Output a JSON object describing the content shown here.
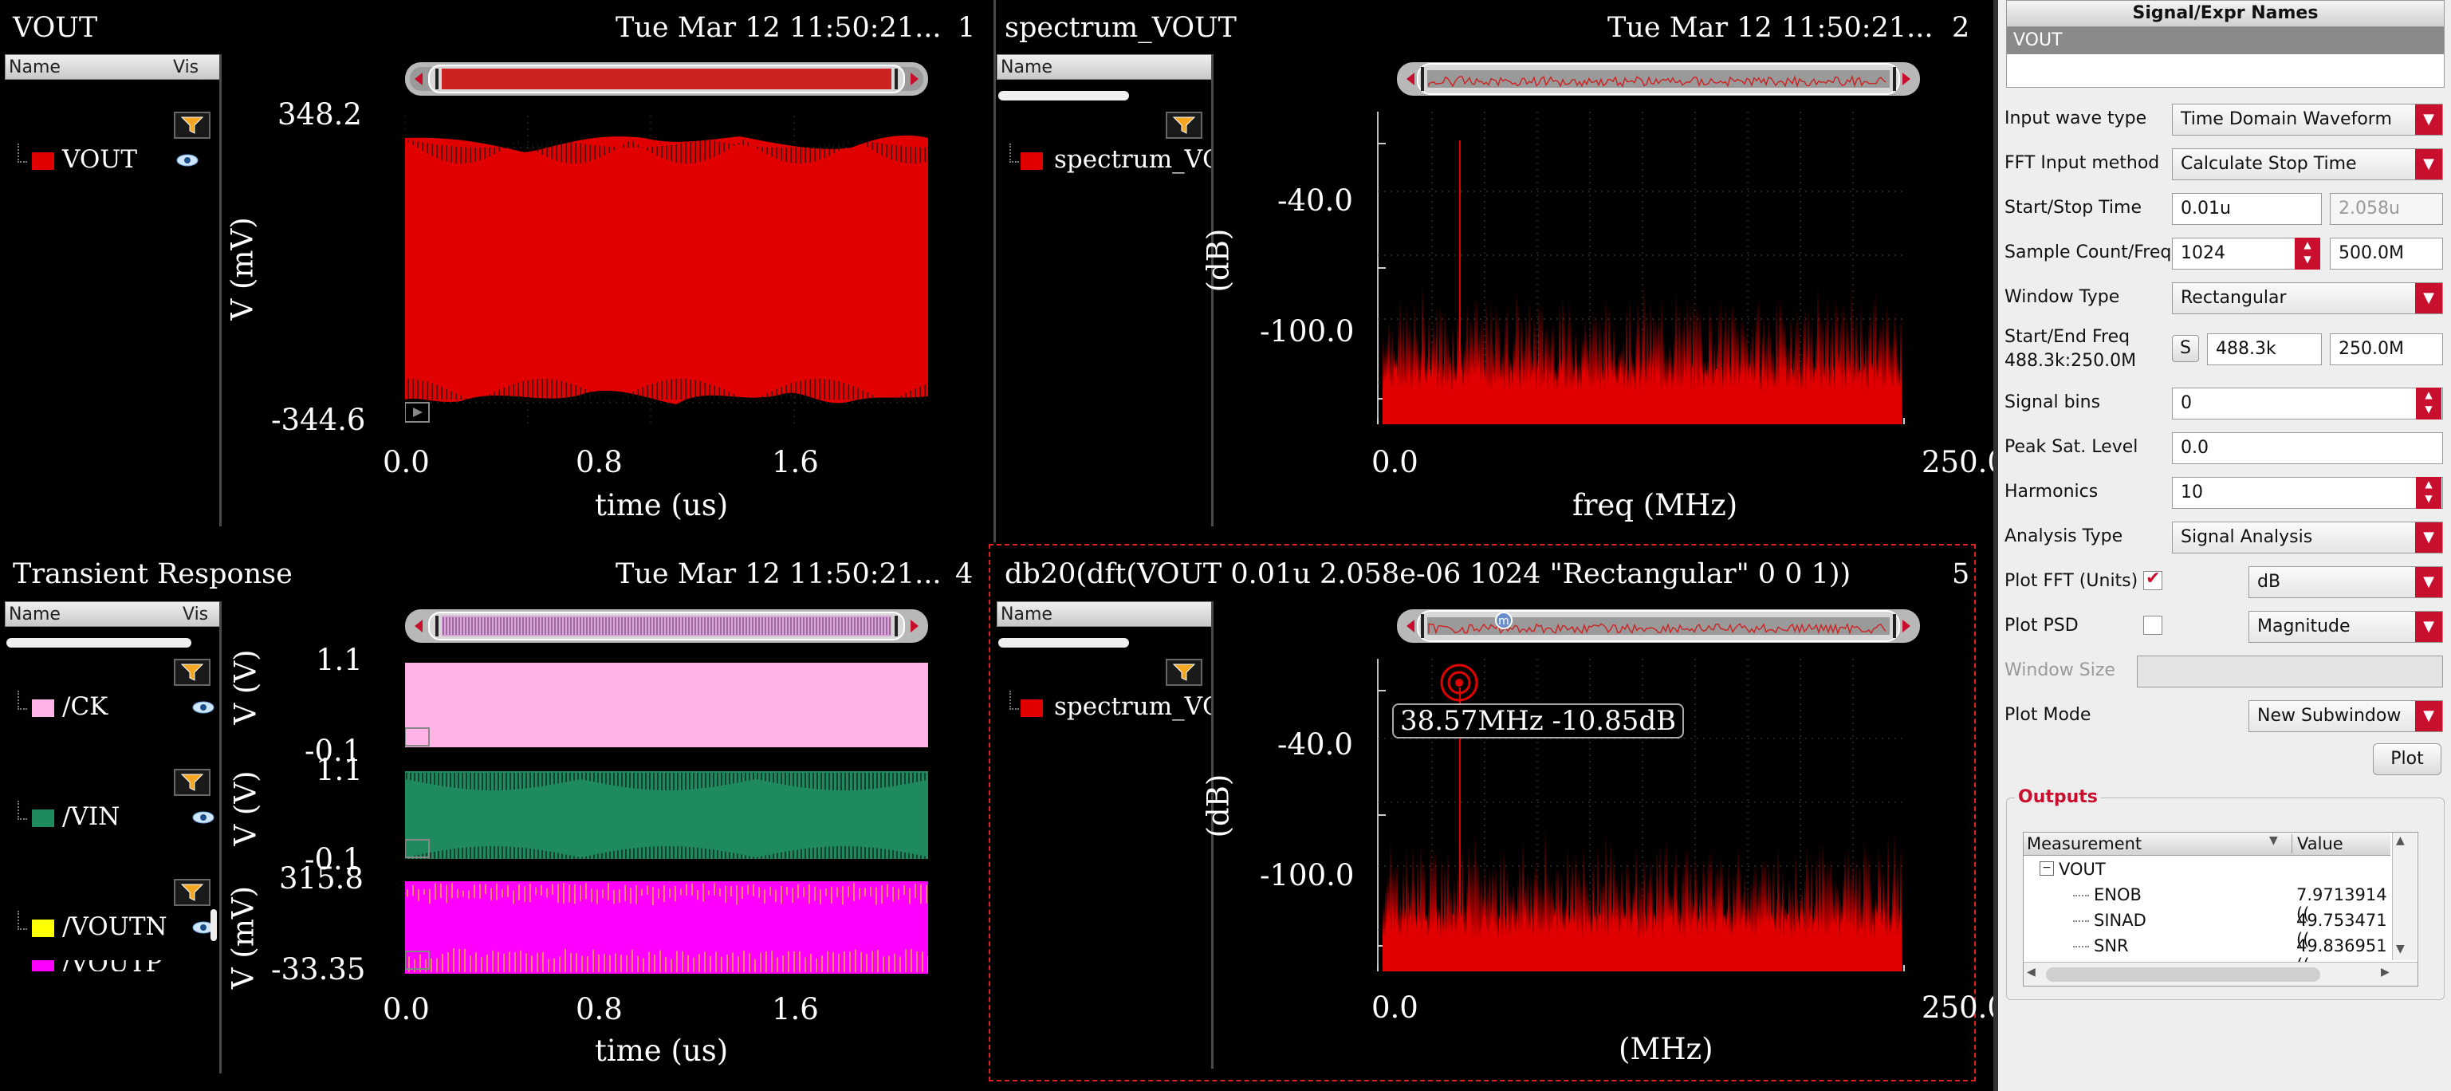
{
  "subwindows": {
    "sw1": {
      "title": "VOUT",
      "timestamp": "Tue Mar 12 11:50:21...",
      "number": "1",
      "legend": {
        "col_name": "Name",
        "col_vis": "Vis",
        "items": [
          {
            "name": "VOUT",
            "color": "#e00000"
          }
        ]
      },
      "ylabel": "V (mV)",
      "yticks": [
        "348.2",
        "-344.6"
      ],
      "xlabel": "time (us)",
      "xticks": [
        "0.0",
        "0.8",
        "1.6"
      ]
    },
    "sw2": {
      "title": "spectrum_VOUT",
      "timestamp": "Tue Mar 12 11:50:21...",
      "number": "2",
      "legend": {
        "col_name": "Name",
        "items": [
          {
            "name": "spectrum_VC",
            "color": "#e00000"
          }
        ]
      },
      "ylabel": "(dB)",
      "yticks": [
        "-40.0",
        "-100.0"
      ],
      "xlabel": "freq (MHz)",
      "xticks": [
        "0.0",
        "250.0"
      ]
    },
    "sw4": {
      "title": "Transient Response",
      "timestamp": "Tue Mar 12 11:50:21...",
      "number": "4",
      "legend": {
        "col_name": "Name",
        "col_vis": "Vis",
        "items": [
          {
            "name": "/CK",
            "color": "#ffb3e6"
          },
          {
            "name": "/VIN",
            "color": "#1e8a5e"
          },
          {
            "name": "/VOUTN",
            "color": "#ffff00"
          },
          {
            "name": "/VOUTP",
            "color": "#ff00ff"
          }
        ]
      },
      "strips": [
        {
          "ylabel": "V (V)",
          "top": "1.1",
          "bottom": "-0.1"
        },
        {
          "ylabel": "V (V)",
          "top": "1.1",
          "bottom": "-0.1"
        },
        {
          "ylabel": "V (mV)",
          "top": "315.8",
          "bottom": "-33.35"
        }
      ],
      "xlabel": "time (us)",
      "xticks": [
        "0.0",
        "0.8",
        "1.6"
      ]
    },
    "sw5": {
      "title": "db20(dft(VOUT  0.01u 2.058e-06 1024 \"Rectangular\" 0 0 1))",
      "number": "5",
      "legend": {
        "col_name": "Name",
        "items": [
          {
            "name": "spectrum_VC",
            "color": "#e00000"
          }
        ]
      },
      "ylabel": "(dB)",
      "yticks": [
        "-40.0",
        "-100.0"
      ],
      "xlabel": "(MHz)",
      "xticks": [
        "0.0",
        "250.0"
      ],
      "marker": "38.57MHz -10.85dB",
      "marker_glyph": "m"
    }
  },
  "panel": {
    "names_header": "Signal/Expr Names",
    "names_selected": "VOUT",
    "fields": [
      {
        "label": "Input wave type",
        "combo": "Time Domain Waveform"
      },
      {
        "label": "FFT Input method",
        "combo": "Calculate Stop Time"
      },
      {
        "label": "Start/Stop Time",
        "value1": "0.01u",
        "value2": "2.058u"
      },
      {
        "label": "Sample Count/Freq",
        "value1": "1024",
        "value2": "500.0M"
      },
      {
        "label": "Window Type",
        "combo": "Rectangular"
      },
      {
        "label": "Start/End Freq",
        "sublabel": "488.3k:250.0M",
        "button": "S",
        "value1": "488.3k",
        "value2": "250.0M"
      },
      {
        "label": "Signal bins",
        "value1": "0"
      },
      {
        "label": "Peak Sat. Level",
        "value1": "0.0"
      },
      {
        "label": "Harmonics",
        "value1": "10"
      },
      {
        "label": "Analysis Type",
        "combo": "Signal Analysis"
      },
      {
        "label": "Plot FFT (Units)",
        "checked": true,
        "combo": "dB"
      },
      {
        "label": "Plot PSD",
        "checked": false,
        "combo": "Magnitude"
      },
      {
        "label": "Window Size",
        "value1": ""
      },
      {
        "label": "Plot Mode",
        "combo": "New Subwindow"
      }
    ],
    "plot_button": "Plot",
    "outputs_title": "Outputs",
    "outputs_cols": [
      "Measurement",
      "Value"
    ],
    "outputs_root": "VOUT",
    "outputs_rows": [
      {
        "name": "ENOB",
        "value": "7.9713914 (("
      },
      {
        "name": "SINAD",
        "value": "49.753471 (("
      },
      {
        "name": "SNR",
        "value": "49.836951 (("
      }
    ]
  },
  "colors": {
    "waveform_red": "#e00000",
    "accent_red": "#c8102e",
    "grid": "#3a3a3a"
  }
}
